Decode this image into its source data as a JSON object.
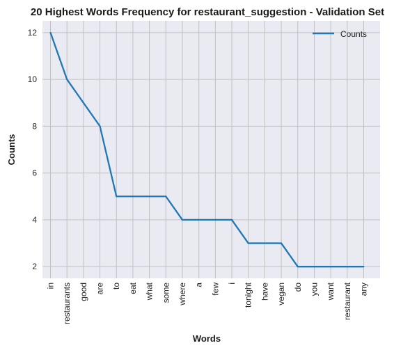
{
  "chart_data": {
    "type": "line",
    "title": "20 Highest Words Frequency for restaurant_suggestion - Validation Set",
    "xlabel": "Words",
    "ylabel": "Counts",
    "categories": [
      "in",
      "restaurants",
      "good",
      "are",
      "to",
      "eat",
      "what",
      "some",
      "where",
      "a",
      "few",
      "i",
      "tonight",
      "have",
      "vegan",
      "do",
      "you",
      "want",
      "restaurant",
      "any"
    ],
    "series": [
      {
        "name": "Counts",
        "values": [
          12,
          10,
          9,
          8,
          5,
          5,
          5,
          5,
          4,
          4,
          4,
          4,
          3,
          3,
          3,
          2,
          2,
          2,
          2,
          2
        ],
        "color": "#1f77b4"
      }
    ],
    "yticks": [
      "2",
      "4",
      "6",
      "8",
      "10",
      "12"
    ],
    "ylim": [
      1.5,
      12.5
    ],
    "grid": true,
    "legend_position": "top-right",
    "background_color": "#eaeaf2",
    "grid_color": "#c0c0c0"
  }
}
